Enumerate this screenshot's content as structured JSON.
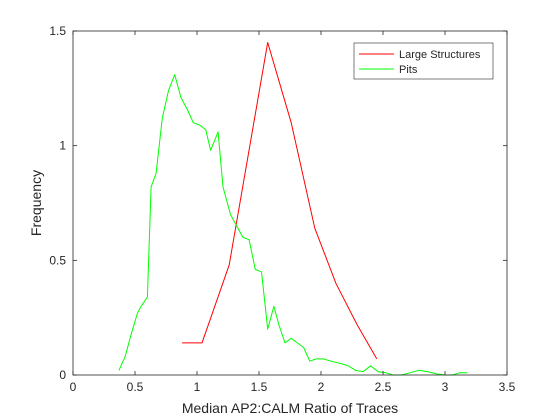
{
  "chart_data": {
    "type": "line",
    "xlabel": "Median AP2:CALM Ratio of Traces",
    "ylabel": "Frequency",
    "xlim": [
      0,
      3.5
    ],
    "ylim": [
      0,
      1.5
    ],
    "x_ticks": [
      0,
      0.5,
      1,
      1.5,
      2,
      2.5,
      3,
      3.5
    ],
    "x_tick_labels": [
      "0",
      "0.5",
      "1",
      "1.5",
      "2",
      "2.5",
      "3",
      "3.5"
    ],
    "y_ticks": [
      0,
      0.5,
      1,
      1.5
    ],
    "y_tick_labels": [
      "0",
      "0.5",
      "1",
      "1.5"
    ],
    "grid": false,
    "legend_position": "top-right",
    "series": [
      {
        "name": "Large Structures",
        "color": "#ff0000",
        "points": [
          [
            0.88,
            0.14
          ],
          [
            1.04,
            0.14
          ],
          [
            1.26,
            0.48
          ],
          [
            1.57,
            1.45
          ],
          [
            1.76,
            1.1
          ],
          [
            1.95,
            0.64
          ],
          [
            2.12,
            0.4
          ],
          [
            2.29,
            0.22
          ],
          [
            2.45,
            0.07
          ]
        ]
      },
      {
        "name": "Pits",
        "color": "#00ff00",
        "points": [
          [
            0.37,
            0.02
          ],
          [
            0.42,
            0.08
          ],
          [
            0.47,
            0.18
          ],
          [
            0.52,
            0.27
          ],
          [
            0.55,
            0.3
          ],
          [
            0.6,
            0.34
          ],
          [
            0.63,
            0.82
          ],
          [
            0.67,
            0.88
          ],
          [
            0.72,
            1.12
          ],
          [
            0.77,
            1.24
          ],
          [
            0.82,
            1.31
          ],
          [
            0.87,
            1.21
          ],
          [
            0.92,
            1.16
          ],
          [
            0.97,
            1.1
          ],
          [
            1.02,
            1.09
          ],
          [
            1.07,
            1.07
          ],
          [
            1.11,
            0.98
          ],
          [
            1.17,
            1.06
          ],
          [
            1.21,
            0.82
          ],
          [
            1.27,
            0.7
          ],
          [
            1.32,
            0.65
          ],
          [
            1.37,
            0.6
          ],
          [
            1.42,
            0.59
          ],
          [
            1.47,
            0.46
          ],
          [
            1.52,
            0.45
          ],
          [
            1.57,
            0.2
          ],
          [
            1.62,
            0.3
          ],
          [
            1.66,
            0.22
          ],
          [
            1.71,
            0.14
          ],
          [
            1.76,
            0.16
          ],
          [
            1.81,
            0.14
          ],
          [
            1.86,
            0.12
          ],
          [
            1.91,
            0.06
          ],
          [
            1.96,
            0.07
          ],
          [
            2.02,
            0.07
          ],
          [
            2.08,
            0.06
          ],
          [
            2.16,
            0.05
          ],
          [
            2.22,
            0.04
          ],
          [
            2.28,
            0.02
          ],
          [
            2.34,
            0.015
          ],
          [
            2.4,
            0.04
          ],
          [
            2.46,
            0.015
          ],
          [
            2.52,
            0.01
          ],
          [
            2.58,
            0.0
          ],
          [
            2.65,
            0.0
          ],
          [
            2.72,
            0.01
          ],
          [
            2.79,
            0.02
          ],
          [
            2.86,
            0.015
          ],
          [
            2.93,
            0.005
          ],
          [
            3.0,
            0.0
          ],
          [
            3.06,
            0.0
          ],
          [
            3.12,
            0.01
          ],
          [
            3.18,
            0.01
          ]
        ]
      }
    ]
  }
}
